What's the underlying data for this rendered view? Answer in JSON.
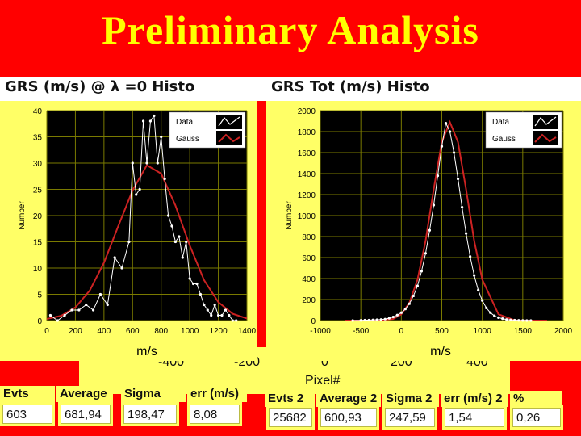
{
  "slide_title": "Preliminary Analysis",
  "chart_data": [
    {
      "type": "line",
      "title": "GRS (m/s) @ λ =0 Histo",
      "xlabel": "m/s",
      "ylabel": "Number",
      "xlim": [
        0,
        1400
      ],
      "ylim": [
        0,
        40
      ],
      "xticks": [
        "0",
        "200",
        "400",
        "600",
        "800",
        "1000",
        "1200",
        "1400"
      ],
      "yticks": [
        "0",
        "5",
        "10",
        "15",
        "20",
        "25",
        "30",
        "35",
        "40"
      ],
      "grid": true,
      "legend": "top-right",
      "series": [
        {
          "name": "Data",
          "color": "#ffffff",
          "x": [
            25,
            75,
            125,
            175,
            225,
            275,
            325,
            375,
            425,
            475,
            525,
            575,
            600,
            625,
            650,
            675,
            700,
            725,
            750,
            775,
            800,
            825,
            850,
            875,
            900,
            925,
            950,
            975,
            1000,
            1025,
            1050,
            1075,
            1100,
            1125,
            1150,
            1175,
            1200,
            1225,
            1250,
            1275,
            1300,
            1325
          ],
          "y": [
            1,
            0,
            1,
            2,
            2,
            3,
            2,
            5,
            3,
            12,
            10,
            15,
            30,
            24,
            25,
            38,
            30,
            38,
            39,
            30,
            35,
            27,
            20,
            18,
            15,
            16,
            12,
            15,
            8,
            7,
            7,
            5,
            3,
            2,
            1,
            3,
            1,
            1,
            2,
            1,
            0,
            0
          ]
        },
        {
          "name": "Gauss",
          "color": "#cc2222",
          "x": [
            0,
            100,
            200,
            300,
            400,
            500,
            600,
            700,
            800,
            900,
            1000,
            1100,
            1200,
            1300,
            1400
          ],
          "y": [
            0.3,
            0.9,
            2.5,
            5.7,
            11.0,
            18.0,
            24.8,
            29.6,
            28.0,
            21.9,
            14.3,
            7.7,
            3.5,
            1.3,
            0.4
          ]
        }
      ]
    },
    {
      "type": "line",
      "title": "GRS Tot (m/s) Histo",
      "xlabel": "m/s",
      "ylabel": "Number",
      "xlim": [
        -1000,
        2000
      ],
      "ylim": [
        0,
        2000
      ],
      "xticks": [
        "-1000",
        "-500",
        "0",
        "500",
        "1000",
        "1500",
        "2000"
      ],
      "yticks": [
        "0",
        "200",
        "400",
        "600",
        "800",
        "1000",
        "1200",
        "1400",
        "1600",
        "1800",
        "2000"
      ],
      "grid": true,
      "legend": "top-right",
      "series": [
        {
          "name": "Data",
          "color": "#ffffff",
          "x": [
            -600,
            -500,
            -450,
            -400,
            -350,
            -300,
            -250,
            -200,
            -150,
            -100,
            -50,
            0,
            50,
            100,
            150,
            200,
            250,
            300,
            350,
            400,
            450,
            500,
            550,
            600,
            650,
            700,
            750,
            800,
            850,
            900,
            950,
            1000,
            1050,
            1100,
            1150,
            1200,
            1250,
            1300,
            1350,
            1400,
            1450,
            1500,
            1550,
            1600
          ],
          "y": [
            0,
            2,
            4,
            4,
            6,
            8,
            10,
            14,
            22,
            34,
            52,
            75,
            110,
            160,
            235,
            330,
            470,
            640,
            860,
            1100,
            1380,
            1660,
            1880,
            1800,
            1600,
            1350,
            1080,
            830,
            610,
            430,
            290,
            190,
            120,
            75,
            45,
            28,
            18,
            10,
            6,
            4,
            2,
            1,
            0,
            0
          ]
        },
        {
          "name": "Gauss",
          "color": "#cc2222",
          "x": [
            -700,
            -500,
            -300,
            -100,
            0,
            100,
            200,
            300,
            400,
            500,
            600,
            700,
            800,
            900,
            1000,
            1200,
            1400,
            1600,
            1800
          ],
          "y": [
            0,
            0,
            2,
            15,
            60,
            170,
            390,
            760,
            1250,
            1700,
            1890,
            1700,
            1250,
            760,
            390,
            60,
            2,
            0,
            0
          ]
        }
      ]
    }
  ],
  "lower_axis": {
    "ticks": [
      "-400",
      "-200",
      "0",
      "200",
      "400"
    ],
    "label": "Pixel#"
  },
  "stats_left": [
    {
      "label": "Evts",
      "value": "603"
    },
    {
      "label": "Average",
      "value": "681,94"
    },
    {
      "label": "Sigma",
      "value": "198,47"
    },
    {
      "label": "err (m/s)",
      "value": "8,08"
    }
  ],
  "stats_right": [
    {
      "label": "Evts 2",
      "value": "25682"
    },
    {
      "label": "Average 2",
      "value": "600,93"
    },
    {
      "label": "Sigma 2",
      "value": "247,59"
    },
    {
      "label": "err (m/s) 2",
      "value": "1,54"
    },
    {
      "label": "%",
      "value": "0,26"
    }
  ]
}
